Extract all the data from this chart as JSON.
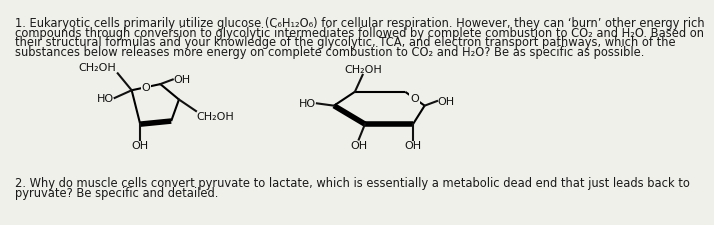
{
  "bg_color": "#f0f0eb",
  "text_color": "#1a1a1a",
  "line_color": "#111111",
  "para1_line1": "1. Eukaryotic cells primarily utilize glucose (C₆H₁₂O₆) for cellular respiration. However, they can ‘burn’ other energy rich",
  "para1_line2": "compounds through conversion to glycolytic intermediates followed by complete combustion to CO₂ and H₂O. Based on",
  "para1_line3": "their structural formulas and your knowledge of the glycolytic, TCA, and electron transport pathways, which of the",
  "para1_line4": "substances below releases more energy on complete combustion to CO₂ and H₂O? Be as specific as possible.",
  "para2_line1": "2. Why do muscle cells convert pyruvate to lactate, which is essentially a metabolic dead end that just leads back to",
  "para2_line2": "pyruvate? Be specific and detailed.",
  "fontsize_main": 8.3,
  "fontsize_chem": 8.0
}
